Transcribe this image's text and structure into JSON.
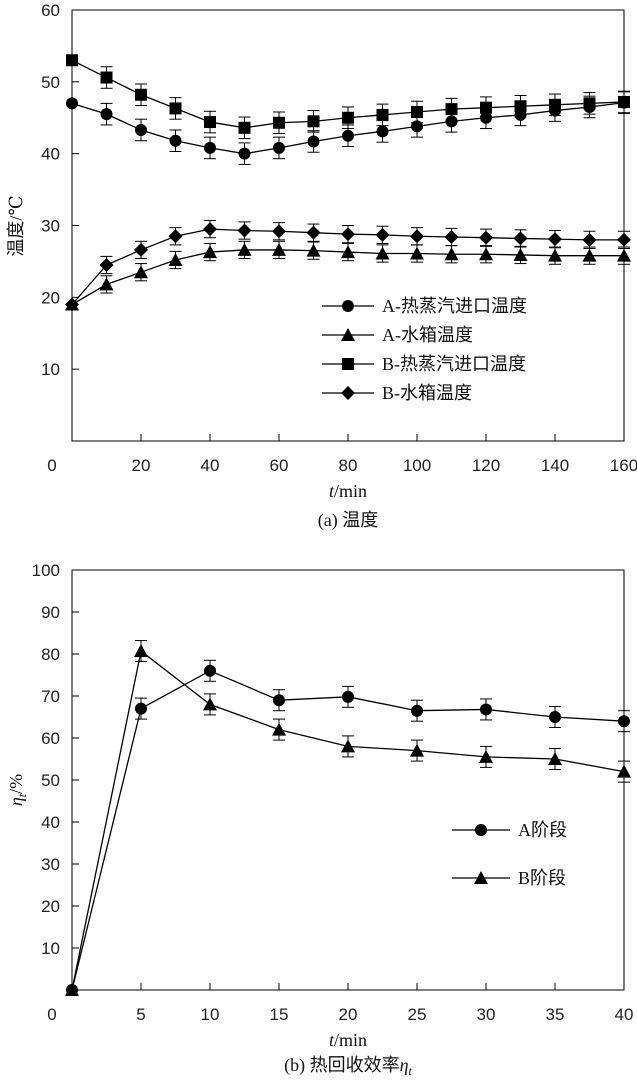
{
  "chart_data": [
    {
      "type": "line",
      "caption": "(a) 温度",
      "xlabel_var": "t",
      "xlabel_unit": "/min",
      "ylabel": "温度/℃",
      "xlim": [
        0,
        160
      ],
      "ylim": [
        0,
        60
      ],
      "xticks": [
        0,
        20,
        40,
        60,
        80,
        100,
        120,
        140,
        160
      ],
      "yticks": [
        10,
        20,
        30,
        40,
        50,
        60
      ],
      "ytick_labels": [
        "10",
        "20",
        "30",
        "40",
        "50",
        "60"
      ],
      "legend_position": "center-right",
      "series": [
        {
          "name": "A-热蒸汽进口温度",
          "marker": "circle",
          "x": [
            0,
            10,
            20,
            30,
            40,
            50,
            60,
            70,
            80,
            90,
            100,
            110,
            120,
            130,
            140,
            150,
            160
          ],
          "y": [
            47,
            45.5,
            43.3,
            41.8,
            40.8,
            40,
            40.8,
            41.7,
            42.5,
            43.1,
            43.8,
            44.5,
            45,
            45.4,
            46,
            46.5,
            47.1
          ],
          "err": 1.5
        },
        {
          "name": "A-水箱温度",
          "marker": "triangle",
          "x": [
            0,
            10,
            20,
            30,
            40,
            50,
            60,
            70,
            80,
            90,
            100,
            110,
            120,
            130,
            140,
            150,
            160
          ],
          "y": [
            19,
            21.8,
            23.5,
            25.2,
            26.3,
            26.6,
            26.6,
            26.5,
            26.3,
            26.1,
            26.1,
            26,
            26,
            25.9,
            25.8,
            25.8,
            25.8
          ],
          "err": 1.2
        },
        {
          "name": "B-热蒸汽进口温度",
          "marker": "square",
          "x": [
            0,
            10,
            20,
            30,
            40,
            50,
            60,
            70,
            80,
            90,
            100,
            110,
            120,
            130,
            140,
            150,
            160
          ],
          "y": [
            53,
            50.6,
            48.2,
            46.3,
            44.4,
            43.6,
            44.3,
            44.5,
            45,
            45.4,
            45.8,
            46.2,
            46.4,
            46.6,
            46.8,
            47,
            47.2
          ],
          "err": 1.5
        },
        {
          "name": "B-水箱温度",
          "marker": "diamond",
          "x": [
            0,
            10,
            20,
            30,
            40,
            50,
            60,
            70,
            80,
            90,
            100,
            110,
            120,
            130,
            140,
            150,
            160
          ],
          "y": [
            19,
            24.5,
            26.6,
            28.5,
            29.5,
            29.3,
            29.2,
            29,
            28.8,
            28.7,
            28.5,
            28.4,
            28.3,
            28.2,
            28.1,
            28.0,
            28.0
          ],
          "err": 1.2
        }
      ]
    },
    {
      "type": "line",
      "caption_prefix": "(b) 热回收效率",
      "caption_var": "η",
      "caption_sub": "t",
      "xlabel_var": "t",
      "xlabel_unit": "/min",
      "ylabel_var": "η",
      "ylabel_sub": "t",
      "ylabel_unit": "/%",
      "xlim": [
        0,
        40
      ],
      "ylim": [
        0,
        100
      ],
      "xticks": [
        0,
        5,
        10,
        15,
        20,
        25,
        30,
        35,
        40
      ],
      "yticks": [
        10,
        20,
        30,
        40,
        50,
        60,
        70,
        80,
        90,
        100
      ],
      "ytick_labels": [
        "10",
        "20",
        "30",
        "40",
        "50",
        "60",
        "70",
        "80",
        "90",
        "100"
      ],
      "legend_position": "center-right",
      "series": [
        {
          "name": "A阶段",
          "marker": "circle",
          "x": [
            0,
            5,
            10,
            15,
            20,
            25,
            30,
            35,
            40
          ],
          "y": [
            0,
            67,
            76,
            69,
            69.8,
            66.5,
            66.8,
            65,
            64
          ],
          "err": 2.5
        },
        {
          "name": "B阶段",
          "marker": "triangle",
          "x": [
            0,
            5,
            10,
            15,
            20,
            25,
            30,
            35,
            40
          ],
          "y": [
            0,
            80.7,
            68,
            62,
            58,
            57,
            55.5,
            55,
            52
          ],
          "err": 2.5
        }
      ]
    }
  ]
}
